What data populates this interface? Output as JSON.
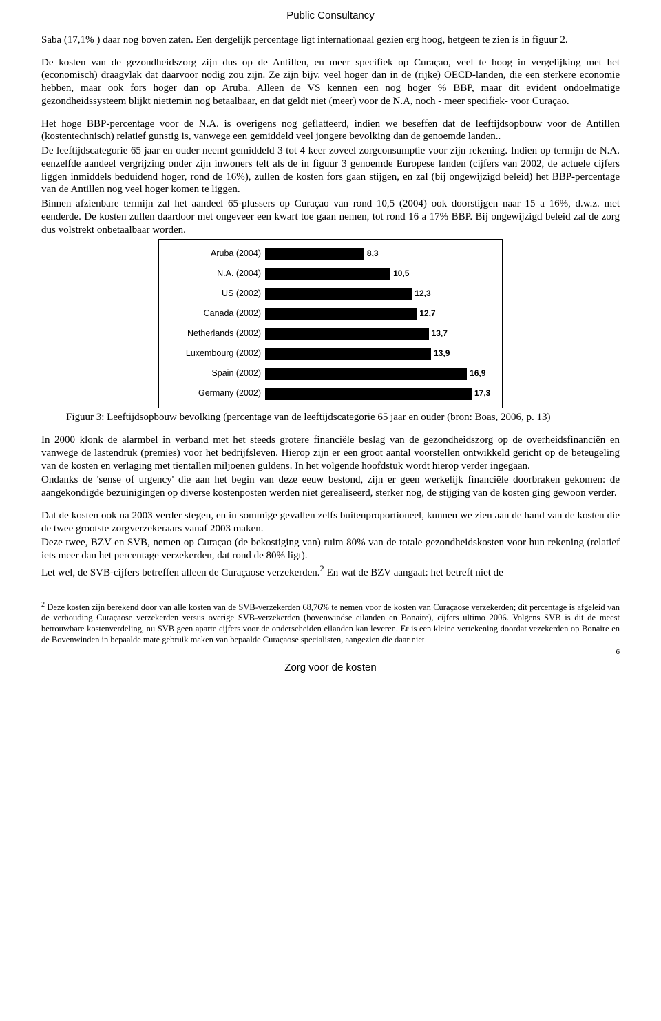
{
  "header": "Public Consultancy",
  "footer": "Zorg voor de kosten",
  "page_number": "6",
  "p1": "Saba (17,1% ) daar nog boven zaten. Een dergelijk percentage ligt internationaal gezien erg hoog, hetgeen te zien is in figuur 2.",
  "p2": "De kosten van de gezondheidszorg zijn dus op de Antillen, en meer specifiek op Curaçao, veel te hoog in vergelijking met het (economisch) draagvlak dat daarvoor nodig zou zijn. Ze zijn bijv. veel hoger dan in de (rijke) OECD-landen, die een sterkere economie hebben, maar ook fors hoger dan op Aruba. Alleen de VS kennen een nog hoger % BBP, maar dit evident ondoelmatige gezondheidssysteem blijkt niettemin nog betaalbaar, en dat geldt niet (meer) voor de N.A, noch - meer specifiek- voor Curaçao.",
  "p3": "Het hoge BBP-percentage voor de N.A. is overigens nog geflatteerd, indien we beseffen dat de leeftijdsopbouw voor de Antillen (kostentechnisch) relatief gunstig is, vanwege een gemiddeld veel jongere bevolking dan de genoemde landen..",
  "p4": "De leeftijdscategorie 65 jaar en ouder neemt gemiddeld 3 tot 4 keer zoveel zorgconsumptie voor zijn rekening. Indien op termijn de N.A. eenzelfde aandeel vergrijzing onder zijn inwoners telt als de in figuur 3 genoemde Europese landen (cijfers van 2002, de actuele cijfers liggen inmiddels beduidend hoger, rond de 16%), zullen de kosten fors gaan stijgen, en zal (bij ongewijzigd beleid) het BBP-percentage van de Antillen nog veel hoger komen te liggen.",
  "p5": "Binnen afzienbare termijn zal het aandeel 65-plussers op Curaçao van rond 10,5 (2004) ook doorstijgen naar 15 a 16%, d.w.z. met eenderde. De kosten zullen daardoor met ongeveer een kwart toe gaan nemen, tot rond 16 a 17% BBP. Bij ongewijzigd beleid zal de zorg dus volstrekt onbetaalbaar worden.",
  "chart": {
    "type": "horizontal-bar",
    "max": 17.3,
    "bar_color": "#000000",
    "background_color": "#ffffff",
    "label_fontsize": 12.5,
    "value_fontsize": 12,
    "rows": [
      {
        "label": "Aruba (2004)",
        "value": 8.3,
        "display": "8,3"
      },
      {
        "label": "N.A. (2004)",
        "value": 10.5,
        "display": "10,5"
      },
      {
        "label": "US (2002)",
        "value": 12.3,
        "display": "12,3"
      },
      {
        "label": "Canada (2002)",
        "value": 12.7,
        "display": "12,7"
      },
      {
        "label": "Netherlands (2002)",
        "value": 13.7,
        "display": "13,7"
      },
      {
        "label": "Luxembourg (2002)",
        "value": 13.9,
        "display": "13,9"
      },
      {
        "label": "Spain (2002)",
        "value": 16.9,
        "display": "16,9"
      },
      {
        "label": "Germany (2002)",
        "value": 17.3,
        "display": "17,3"
      }
    ]
  },
  "caption": "Figuur 3: Leeftijdsopbouw bevolking (percentage van de leeftijdscategorie 65 jaar en ouder (bron: Boas, 2006, p. 13)",
  "p6": "In 2000 klonk de alarmbel in verband met het steeds grotere financiële beslag van de gezondheidszorg op de overheidsfinanciën en vanwege de lastendruk (premies) voor het bedrijfsleven. Hierop zijn er een groot aantal voorstellen ontwikkeld gericht op de beteugeling van de kosten en verlaging met tientallen miljoenen guldens. In het volgende hoofdstuk wordt hierop verder ingegaan.",
  "p7": "Ondanks de 'sense of urgency' die aan het begin van deze eeuw bestond, zijn er geen werkelijk financiële doorbraken gekomen: de aangekondigde bezuinigingen op diverse kostenposten werden niet gerealiseerd, sterker nog, de stijging van de kosten ging gewoon verder.",
  "p8": "Dat de kosten ook na 2003 verder stegen, en in sommige gevallen zelfs buitenproportioneel, kunnen we zien aan de hand van de kosten die de twee grootste zorgverzekeraars vanaf 2003 maken.",
  "p9": "Deze twee, BZV en SVB, nemen op Curaçao (de bekostiging van) ruim 80% van de totale gezondheidskosten voor hun rekening (relatief iets meer dan het percentage verzekerden, dat rond de 80% ligt).",
  "p10a": "Let wel, de SVB-cijfers betreffen alleen de Curaçaose verzekerden.",
  "p10b": " En wat de BZV aangaat: het betreft niet de",
  "footnote_marker": "2",
  "footnote": " Deze kosten zijn berekend door van alle kosten van de SVB-verzekerden 68,76% te nemen voor de kosten van Curaçaose verzekerden; dit percentage is afgeleid van de verhouding Curaçaose verzekerden versus overige SVB-verzekerden (bovenwindse eilanden en Bonaire), cijfers ultimo 2006. Volgens SVB is dit de meest betrouwbare kostenverdeling, nu SVB geen aparte cijfers voor de onderscheiden eilanden kan leveren. Er is een kleine vertekening doordat vezekerden op Bonaire en de Bovenwinden in bepaalde mate gebruik maken van bepaalde Curaçaose specialisten, aangezien die daar niet"
}
